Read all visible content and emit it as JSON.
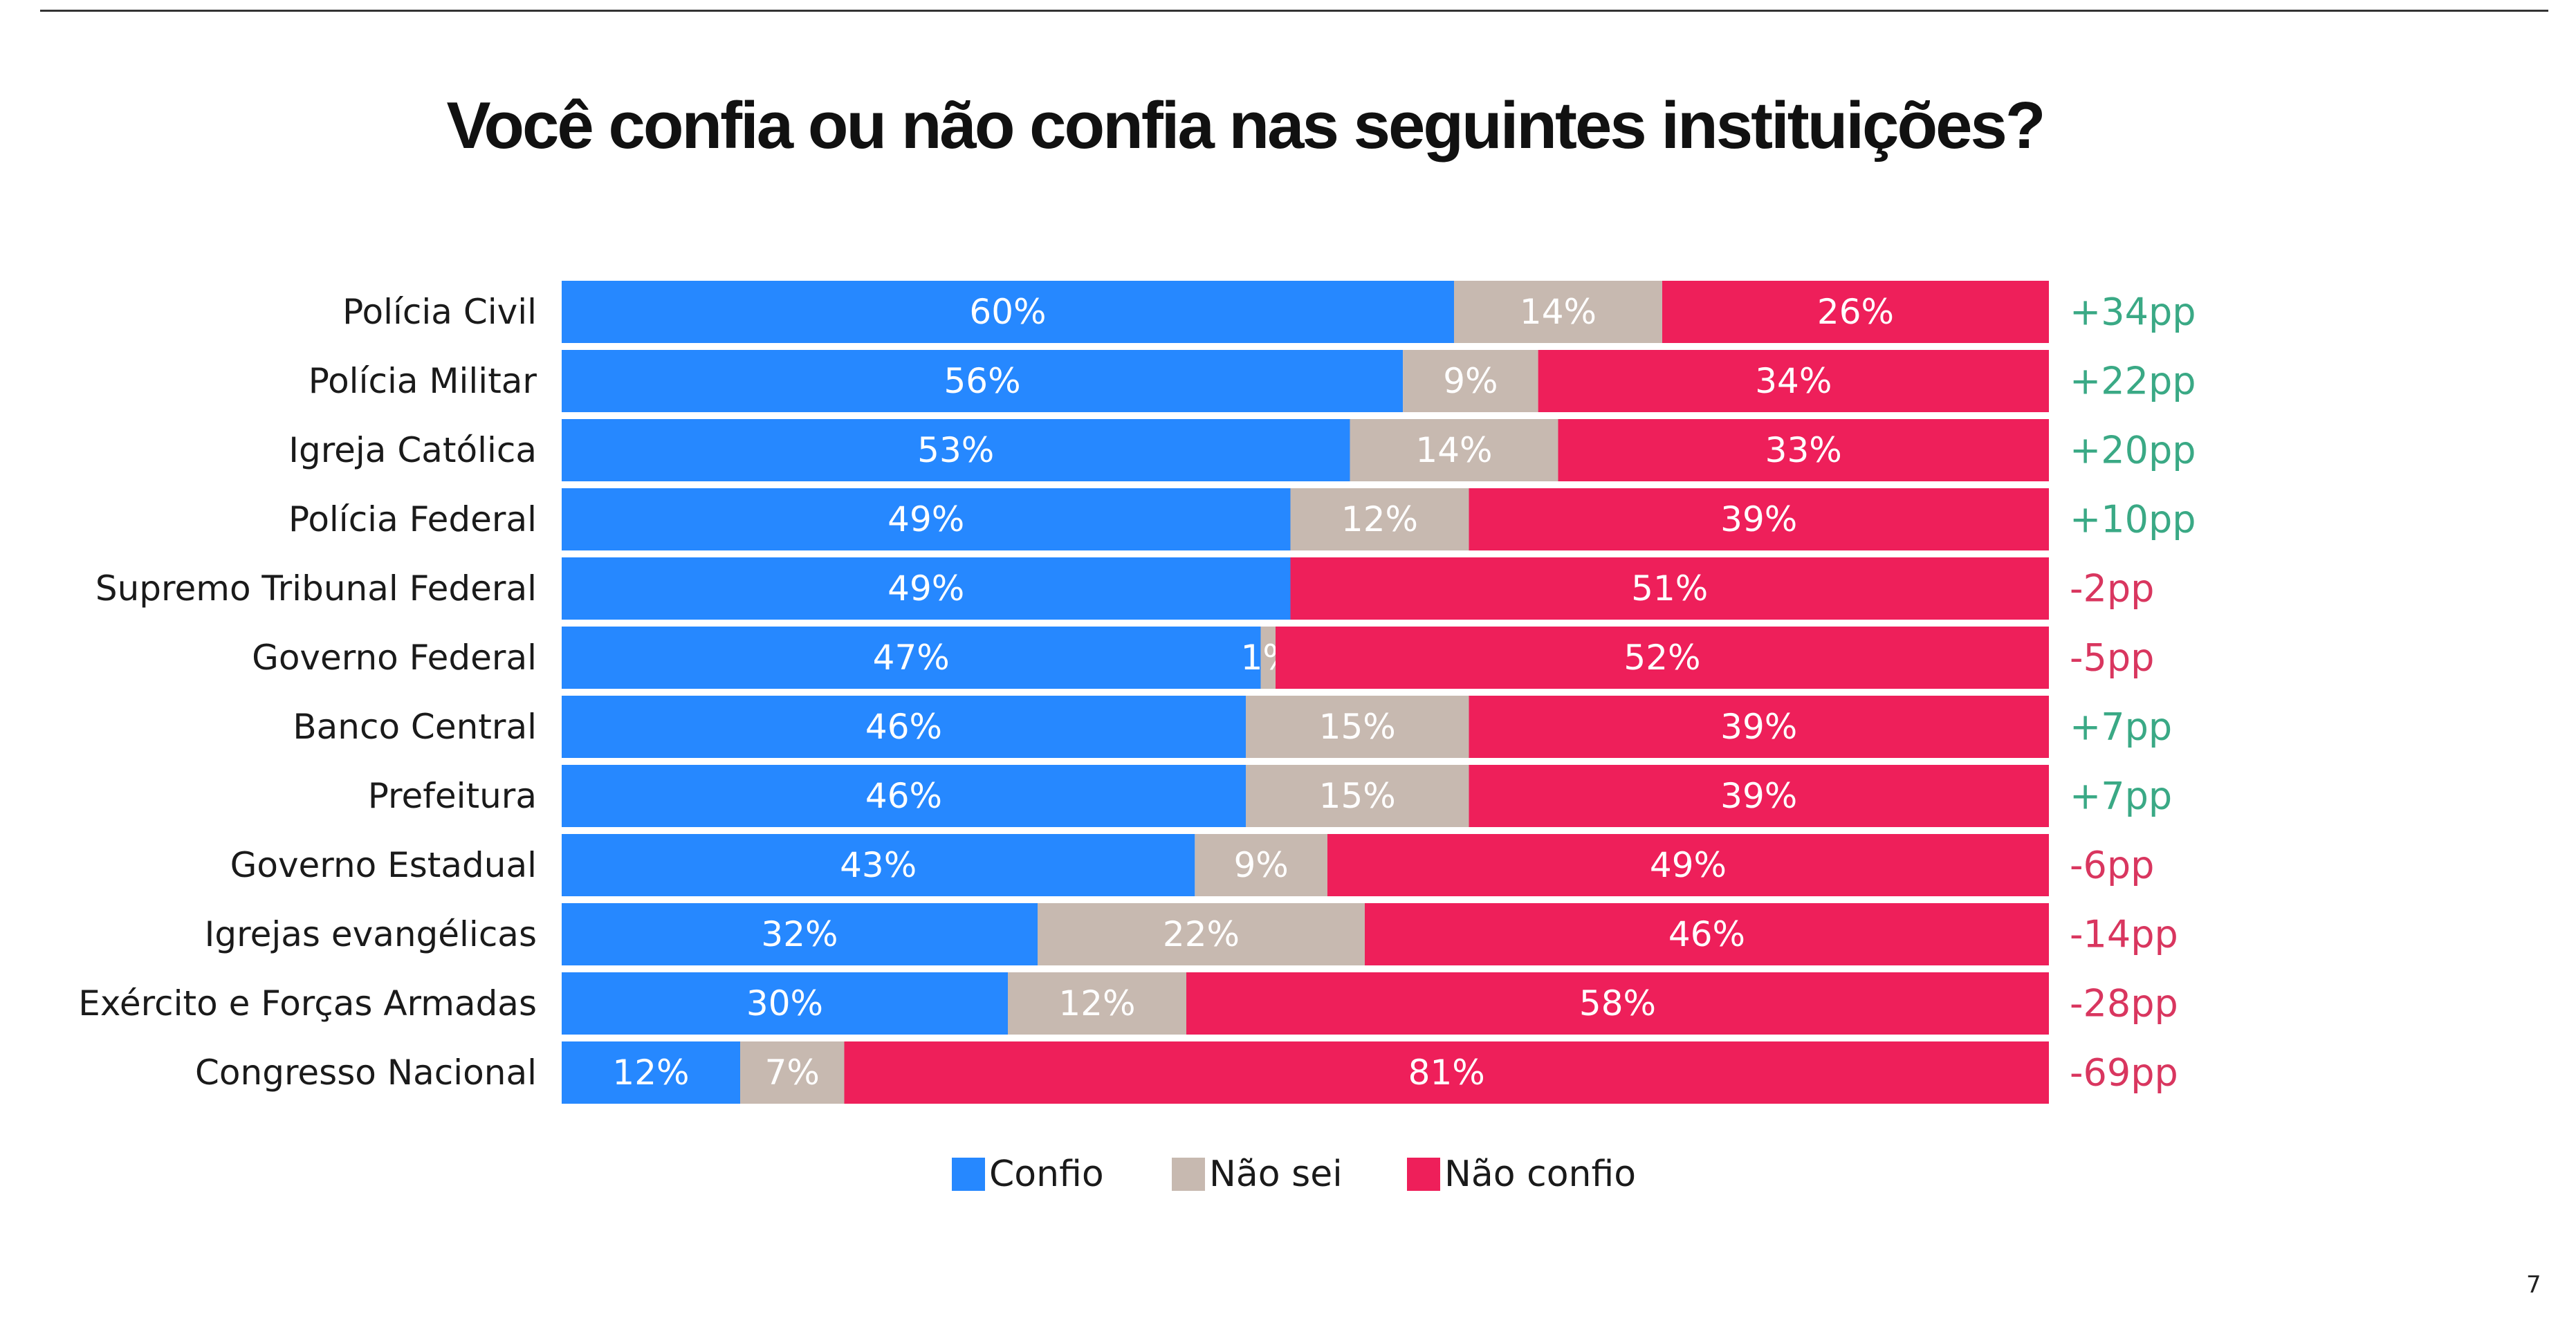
{
  "page": {
    "title": "Você confia ou não confia nas seguintes instituições?",
    "page_number": "7"
  },
  "colors": {
    "confio": "#2688ff",
    "nao_sei": "#c7b9b0",
    "nao_confio": "#ee1f5a",
    "positive": "#3aa985",
    "negative": "#d9365f"
  },
  "chart_data": {
    "type": "bar",
    "orientation": "horizontal",
    "stacked": true,
    "title": "Você confia ou não confia nas seguintes instituições?",
    "categories": [
      "Polícia Civil",
      "Polícia Militar",
      "Igreja Católica",
      "Polícia Federal",
      "Supremo Tribunal Federal",
      "Governo Federal",
      "Banco Central",
      "Prefeitura",
      "Governo Estadual",
      "Igrejas evangélicas",
      "Exército e Forças Armadas",
      "Congresso Nacional"
    ],
    "series": [
      {
        "key": "confio",
        "name": "Confio",
        "values": [
          60,
          56,
          53,
          49,
          49,
          47,
          46,
          46,
          43,
          32,
          30,
          12
        ]
      },
      {
        "key": "nao_sei",
        "name": "Não sei",
        "values": [
          14,
          9,
          14,
          12,
          0,
          1,
          15,
          15,
          9,
          22,
          12,
          7
        ]
      },
      {
        "key": "nao_confio",
        "name": "Não confio",
        "values": [
          26,
          34,
          33,
          39,
          51,
          52,
          39,
          39,
          49,
          46,
          58,
          81
        ]
      }
    ],
    "value_labels": {
      "confio": [
        "60%",
        "56%",
        "53%",
        "49%",
        "49%",
        "47%",
        "46%",
        "46%",
        "43%",
        "32%",
        "30%",
        "12%"
      ],
      "nao_sei": [
        "14%",
        "9%",
        "14%",
        "12%",
        "",
        "1%",
        "15%",
        "15%",
        "9%",
        "22%",
        "12%",
        "7%"
      ],
      "nao_confio": [
        "26%",
        "34%",
        "33%",
        "39%",
        "51%",
        "52%",
        "39%",
        "39%",
        "49%",
        "46%",
        "58%",
        "81%"
      ]
    },
    "net_difference": [
      "+34pp",
      "+22pp",
      "+20pp",
      "+10pp",
      "-2pp",
      "-5pp",
      "+7pp",
      "+7pp",
      "-6pp",
      "-14pp",
      "-28pp",
      "-69pp"
    ],
    "xlim": [
      0,
      100
    ],
    "legend": [
      "Confio",
      "Não sei",
      "Não confio"
    ],
    "legend_position": "bottom-center"
  }
}
